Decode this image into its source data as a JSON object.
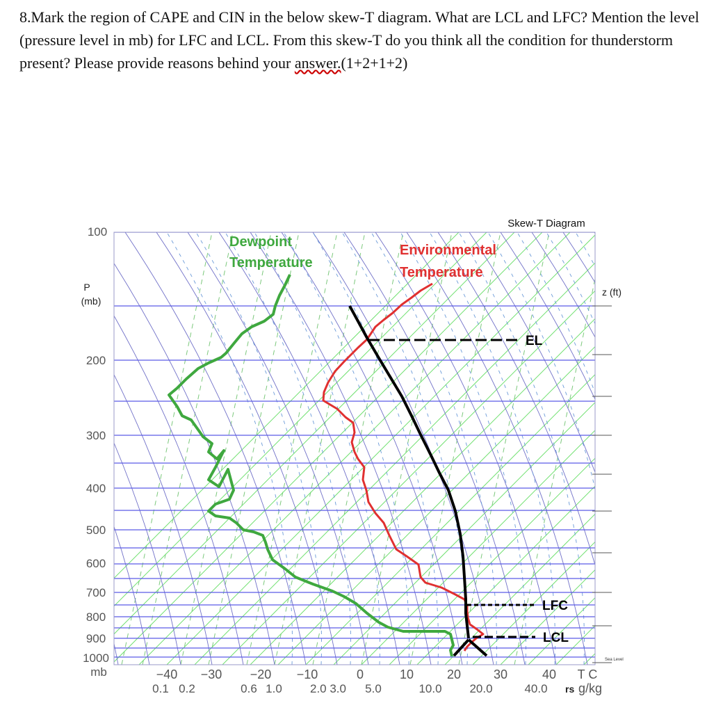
{
  "question": {
    "text_main": "8.Mark the region of CAPE and CIN in the below skew-T diagram. What are LCL and LFC? Mention the level (pressure level in mb) for LFC and LCL. From this skew-T do you think all the condition for thunderstorm present? Please provide reasons behind your ",
    "text_underlined": "answer.",
    "text_tail": "(1+2+1+2)"
  },
  "diagram": {
    "title": "Skew-T Diagram",
    "p_axis_label_1": "P",
    "p_axis_label_2": "(mb)",
    "z_axis_label": "z (ft)",
    "pressure_ticks": [
      "100",
      "200",
      "300",
      "400",
      "500",
      "600",
      "700",
      "800",
      "900",
      "1000",
      "mb"
    ],
    "temp_ticks": [
      "−40",
      "−30",
      "−20",
      "−10",
      "0",
      "10",
      "20",
      "30",
      "40",
      "T C"
    ],
    "mix_ratio_ticks": [
      "0.1",
      "0.2",
      "0.6",
      "1.0",
      "2.0 3.0",
      "5.0",
      "10.0",
      "20.0",
      "40.0"
    ],
    "mix_ratio_label": "rs",
    "mix_ratio_units": "g/kg",
    "sea_level_label": "Sea Level",
    "curve_labels": {
      "dewpoint_1": "Dewpoint",
      "dewpoint_2": "Temperature",
      "env_1": "Environmental",
      "env_2": "Temperature"
    },
    "level_labels": {
      "el": "EL",
      "lfc": "LFC",
      "lcl": "LCL"
    },
    "colors": {
      "isobar": "#5b5be6",
      "isotherm": "#70e070",
      "dry_adiabat": "#7070c8",
      "moist_adiabat": "#6a9ad8",
      "mixing_ratio": "#7cc87c",
      "environmental": "#e03030",
      "dewpoint": "#3fa83f",
      "parcel": "#000000"
    }
  }
}
